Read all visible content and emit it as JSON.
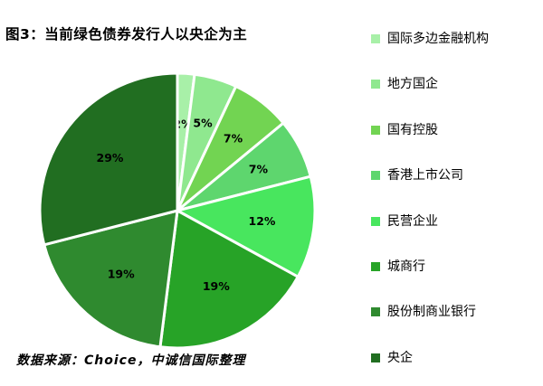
{
  "title": "图3：当前绿色债券发行人以央企为主",
  "source": "数据来源：Choice，中诚信国际整理",
  "chart_data": {
    "type": "pie",
    "title": "图3：当前绿色债券发行人以央企为主",
    "legend_position": "right",
    "categories": [
      "国际多边金融机构",
      "地方国企",
      "国有控股",
      "香港上市公司",
      "民营企业",
      "城商行",
      "股份制商业银行",
      "央企"
    ],
    "values": [
      2,
      5,
      7,
      7,
      12,
      19,
      19,
      29
    ],
    "labels": [
      "2%",
      "5%",
      "7%",
      "7%",
      "12%",
      "19%",
      "19%",
      "29%"
    ],
    "colors": [
      "#a8f0a8",
      "#8fe88f",
      "#72d452",
      "#5ed66e",
      "#48e65e",
      "#27a327",
      "#2f8a2f",
      "#216e21"
    ]
  }
}
